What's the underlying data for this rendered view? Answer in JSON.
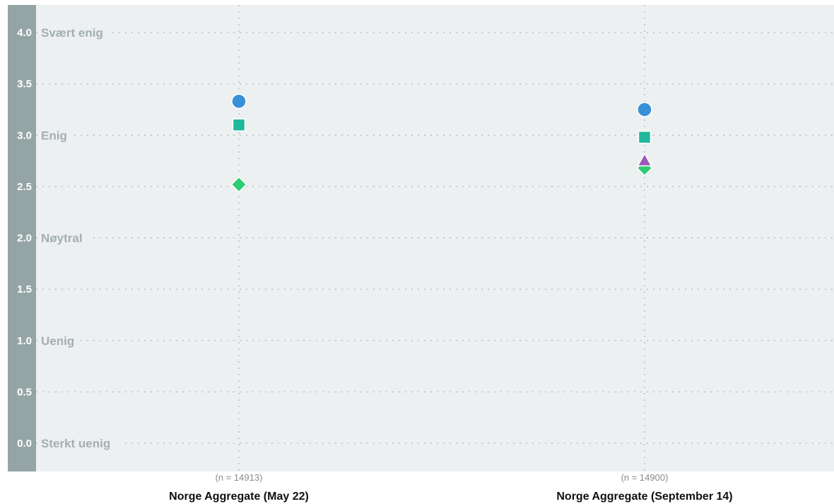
{
  "chart_data": {
    "type": "scatter",
    "ylim": [
      0,
      4
    ],
    "y_ticks": [
      {
        "value": 4.0,
        "label": "4.0",
        "category": "Svært enig"
      },
      {
        "value": 3.5,
        "label": "3.5",
        "category": ""
      },
      {
        "value": 3.0,
        "label": "3.0",
        "category": "Enig"
      },
      {
        "value": 2.5,
        "label": "2.5",
        "category": ""
      },
      {
        "value": 2.0,
        "label": "2.0",
        "category": "Nøytral"
      },
      {
        "value": 1.5,
        "label": "1.5",
        "category": ""
      },
      {
        "value": 1.0,
        "label": "1.0",
        "category": "Uenig"
      },
      {
        "value": 0.5,
        "label": "0.5",
        "category": ""
      },
      {
        "value": 0.0,
        "label": "0.0",
        "category": "Sterkt uenig"
      }
    ],
    "categories": [
      {
        "label": "Norge Aggregate (May 22)",
        "n_label": "(n = 14913)"
      },
      {
        "label": "Norge Aggregate (September 14)",
        "n_label": "(n = 14900)"
      }
    ],
    "series": [
      {
        "marker": "circle",
        "color": "#3a8fd9",
        "values": [
          3.33,
          3.25
        ]
      },
      {
        "marker": "square",
        "color": "#1fb89a",
        "values": [
          3.1,
          2.98
        ]
      },
      {
        "marker": "diamond",
        "color": "#2ecc71",
        "values": [
          2.52,
          2.68
        ]
      },
      {
        "marker": "triangle",
        "color": "#9b59b6",
        "values": [
          null,
          2.75
        ]
      }
    ],
    "grid": true,
    "colors": {
      "plot_background": "#ecf0f1",
      "axis_band": "#95a5a6",
      "tick_label": "#ffffff",
      "category_label": "#a3afb2",
      "grid_line": "#a0a8ab",
      "n_label": "#8a8a8a",
      "x_label": "#111111"
    }
  }
}
